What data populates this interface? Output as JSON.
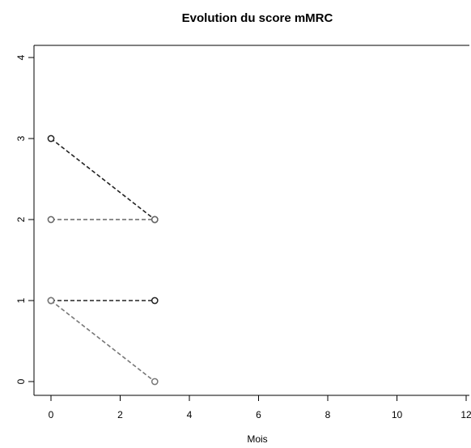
{
  "chart_data": {
    "type": "line",
    "title": "Evolution du score mMRC",
    "xlabel": "Mois",
    "ylabel": "",
    "xlim": [
      -0.5,
      12.2
    ],
    "ylim": [
      -0.15,
      4
    ],
    "x_ticks": [
      "0",
      "2",
      "4",
      "6",
      "8",
      "10",
      "12"
    ],
    "y_ticks": [
      "0",
      "1",
      "2",
      "3",
      "4"
    ],
    "grid": false,
    "legend": "none",
    "series": [
      {
        "x": [
          0,
          3
        ],
        "values": [
          3,
          2
        ],
        "color": "#222222",
        "line_style": "dashed"
      },
      {
        "x": [
          0,
          3
        ],
        "values": [
          2,
          2
        ],
        "color": "#666666",
        "line_style": "dashed"
      },
      {
        "x": [
          0,
          3
        ],
        "values": [
          1,
          1
        ],
        "color": "#222222",
        "line_style": "dashed"
      },
      {
        "x": [
          0,
          3
        ],
        "values": [
          1,
          0
        ],
        "color": "#777777",
        "line_style": "dashed"
      }
    ]
  }
}
